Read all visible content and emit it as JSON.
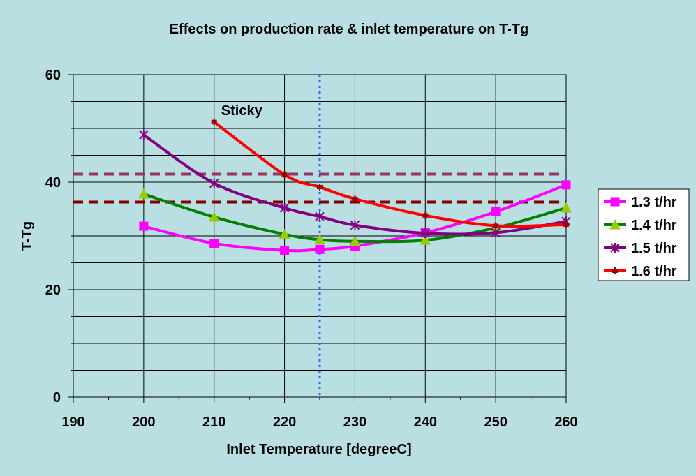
{
  "chart_data": {
    "type": "line",
    "title": "Effects on production rate & inlet temperature on T-Tg",
    "xlabel": "Inlet Temperature [degreeC]",
    "ylabel": "T-Tg",
    "xlim": [
      190,
      260
    ],
    "ylim": [
      0,
      60
    ],
    "x_ticks": [
      "190",
      "200",
      "210",
      "220",
      "230",
      "240",
      "250",
      "260"
    ],
    "y_ticks": [
      "0",
      "20",
      "40",
      "60"
    ],
    "grid": "horizontal and vertical",
    "legend_position": "right",
    "series": [
      {
        "name": "1.3 t/hr",
        "color": "#ff00ff",
        "marker": "square",
        "x": [
          200,
          210,
          220,
          225,
          230,
          240,
          250,
          260
        ],
        "y": [
          31.8,
          28.6,
          27.3,
          27.5,
          28.1,
          30.6,
          34.5,
          39.5
        ]
      },
      {
        "name": "1.4 t/hr",
        "color": "#008000",
        "marker": "triangle",
        "x": [
          200,
          210,
          220,
          225,
          230,
          240,
          250,
          260
        ],
        "y": [
          37.8,
          33.5,
          30.3,
          29.3,
          29.0,
          29.2,
          31.5,
          35.2
        ]
      },
      {
        "name": "1.5 t/hr",
        "color": "#800080",
        "marker": "asterisk",
        "x": [
          200,
          210,
          220,
          225,
          230,
          240,
          250,
          260
        ],
        "y": [
          48.8,
          39.8,
          35.2,
          33.6,
          32.0,
          30.5,
          30.6,
          32.7
        ]
      },
      {
        "name": "1.6 t/hr",
        "color": "#ff0000",
        "marker": "plus",
        "x": [
          210,
          220,
          225,
          230,
          240,
          250,
          260
        ],
        "y": [
          51.2,
          41.4,
          39.1,
          36.9,
          33.8,
          31.9,
          32.1
        ]
      }
    ],
    "reference_lines": [
      {
        "orientation": "horizontal",
        "value": 41.5,
        "style": "dashed",
        "color": "#993366"
      },
      {
        "orientation": "horizontal",
        "value": 36.3,
        "style": "dashed",
        "color": "#800000"
      },
      {
        "orientation": "vertical",
        "value": 225,
        "style": "dotted",
        "color": "#3366ff"
      }
    ],
    "annotations": [
      {
        "text": "Sticky",
        "x": 211,
        "y": 52.5
      }
    ]
  }
}
